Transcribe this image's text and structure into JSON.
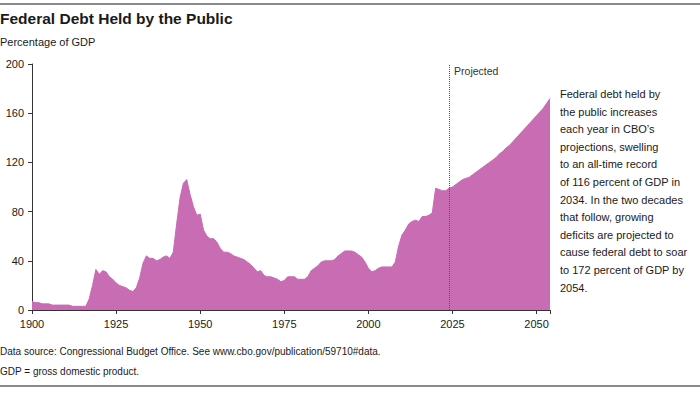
{
  "chart_data": {
    "type": "area",
    "title": "Federal Debt Held by the Public",
    "ylabel": "Percentage of GDP",
    "x": [
      1900,
      1901,
      1902,
      1903,
      1904,
      1905,
      1906,
      1907,
      1908,
      1909,
      1910,
      1911,
      1912,
      1913,
      1914,
      1915,
      1916,
      1917,
      1918,
      1919,
      1920,
      1921,
      1922,
      1923,
      1924,
      1925,
      1926,
      1927,
      1928,
      1929,
      1930,
      1931,
      1932,
      1933,
      1934,
      1935,
      1936,
      1937,
      1938,
      1939,
      1940,
      1941,
      1942,
      1943,
      1944,
      1945,
      1946,
      1947,
      1948,
      1949,
      1950,
      1951,
      1952,
      1953,
      1954,
      1955,
      1956,
      1957,
      1958,
      1959,
      1960,
      1961,
      1962,
      1963,
      1964,
      1965,
      1966,
      1967,
      1968,
      1969,
      1970,
      1971,
      1972,
      1973,
      1974,
      1975,
      1976,
      1977,
      1978,
      1979,
      1980,
      1981,
      1982,
      1983,
      1984,
      1985,
      1986,
      1987,
      1988,
      1989,
      1990,
      1991,
      1992,
      1993,
      1994,
      1995,
      1996,
      1997,
      1998,
      1999,
      2000,
      2001,
      2002,
      2003,
      2004,
      2005,
      2006,
      2007,
      2008,
      2009,
      2010,
      2011,
      2012,
      2013,
      2014,
      2015,
      2016,
      2017,
      2018,
      2019,
      2020,
      2021,
      2022,
      2023,
      2024,
      2025,
      2026,
      2027,
      2028,
      2029,
      2030,
      2031,
      2032,
      2033,
      2034,
      2035,
      2036,
      2037,
      2038,
      2039,
      2040,
      2041,
      2042,
      2043,
      2044,
      2045,
      2046,
      2047,
      2048,
      2049,
      2050,
      2051,
      2052,
      2053,
      2054
    ],
    "values": [
      7,
      6,
      6,
      5,
      5,
      5,
      4,
      4,
      4,
      4,
      4,
      4,
      3,
      3,
      3,
      3,
      3,
      9,
      20,
      33,
      29,
      32,
      31,
      27,
      25,
      22,
      20,
      19,
      18,
      16,
      15,
      18,
      26,
      38,
      44,
      42,
      42,
      40,
      41,
      43,
      44,
      42,
      47,
      70,
      91,
      103,
      106,
      94,
      84,
      77,
      78,
      65,
      60,
      58,
      58,
      55,
      50,
      47,
      47,
      46,
      44,
      43,
      42,
      41,
      39,
      37,
      34,
      31,
      32,
      28,
      27,
      27,
      26,
      25,
      23,
      24,
      27,
      27,
      27,
      25,
      25,
      25,
      27,
      32,
      34,
      36,
      39,
      40,
      40,
      40,
      41,
      44,
      46,
      48,
      48,
      48,
      47,
      45,
      43,
      39,
      34,
      31,
      32,
      34,
      35,
      35,
      35,
      35,
      39,
      52,
      61,
      65,
      70,
      72,
      73,
      72,
      76,
      76,
      77,
      79,
      99,
      98,
      97,
      97,
      99,
      100,
      102,
      104,
      106,
      107,
      108,
      110,
      112,
      114,
      116,
      118,
      120,
      122,
      124,
      127,
      129,
      132,
      134,
      137,
      140,
      143,
      146,
      149,
      152,
      155,
      158,
      161,
      164,
      168,
      172
    ],
    "color": "#c86cb4",
    "xlim": [
      1900,
      2054
    ],
    "xticks": [
      1900,
      1925,
      1950,
      1975,
      2000,
      2025,
      2050
    ],
    "ylim": [
      0,
      200
    ],
    "yticks": [
      0,
      40,
      80,
      120,
      160,
      200
    ],
    "grid": false,
    "annotations": [
      {
        "text": "Projected",
        "x": 2024
      },
      {
        "text": "Federal debt held by\nthe public increases\neach year in CBO’s\nprojections, swelling\nto an all-time record\nof 116 percent of GDP in\n2034. In the two decades\nthat follow, growing\ndeficits are projected to\ncause federal debt to soar\nto 172 percent of GDP by\n2054."
      }
    ],
    "source": "Data source: Congressional Budget Office. See www.cbo.gov/publication/59710#data.",
    "footnote": "GDP = gross domestic product."
  }
}
